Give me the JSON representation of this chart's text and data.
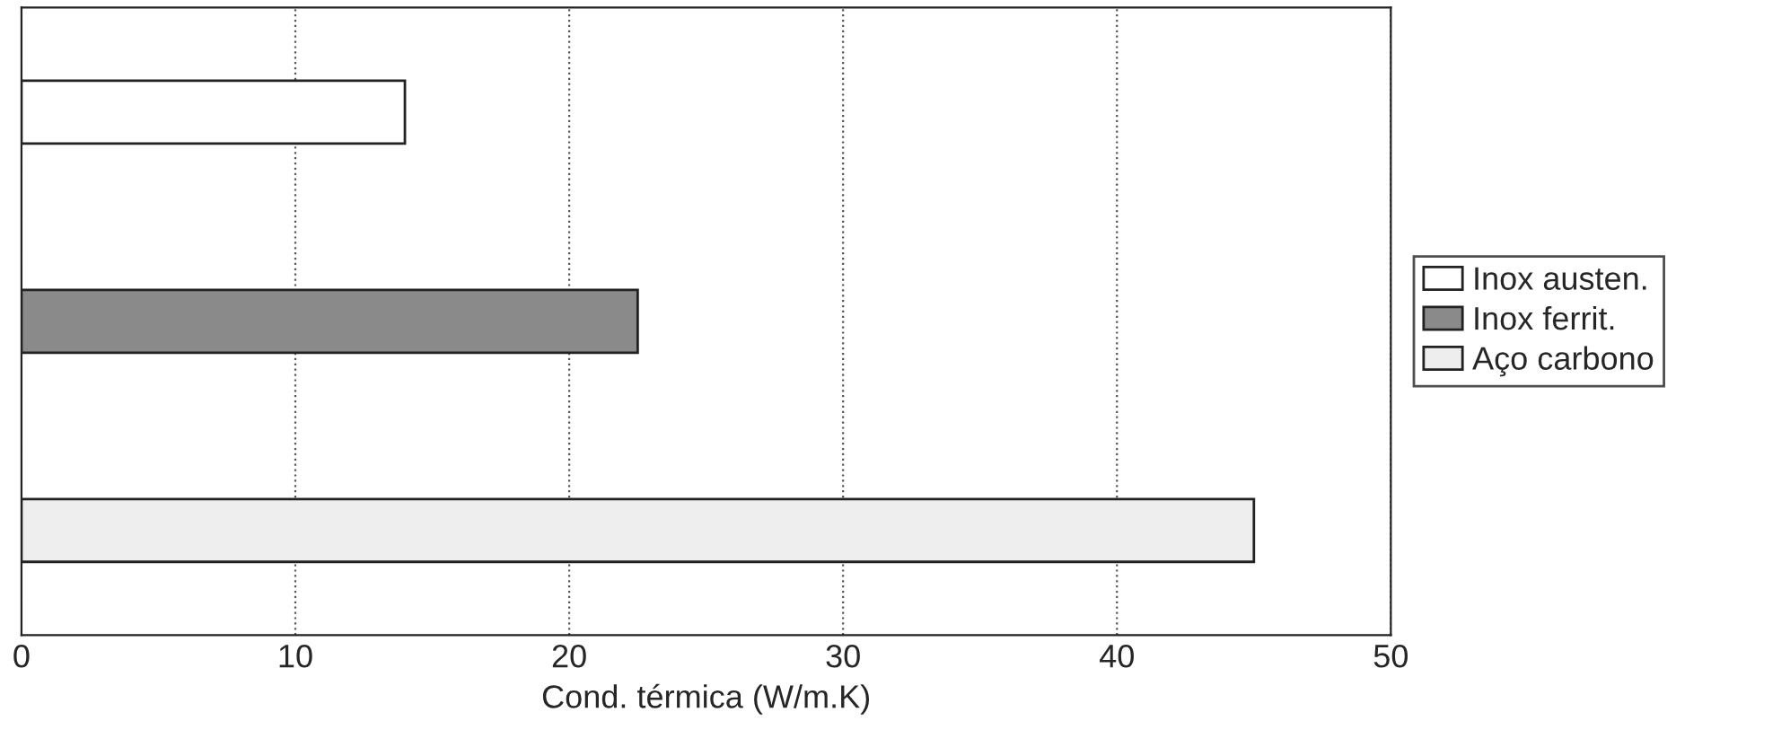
{
  "chart_data": {
    "type": "bar",
    "orientation": "horizontal",
    "xlabel": "Cond. térmica (W/m.K)",
    "categories": [
      null,
      null,
      null
    ],
    "series": [
      {
        "name": "Inox austen.",
        "color": "#ffffff",
        "values": [
          14,
          null,
          null
        ]
      },
      {
        "name": "Inox ferrit.",
        "color": "#8a8a8a",
        "values": [
          null,
          22.5,
          null
        ]
      },
      {
        "name": "Aço carbono",
        "color": "#eeeeee",
        "values": [
          null,
          null,
          45
        ]
      }
    ],
    "xlim": [
      0,
      50
    ],
    "xticks": [
      0,
      10,
      20,
      30,
      40,
      50
    ],
    "grid": "x",
    "legend": "right"
  }
}
